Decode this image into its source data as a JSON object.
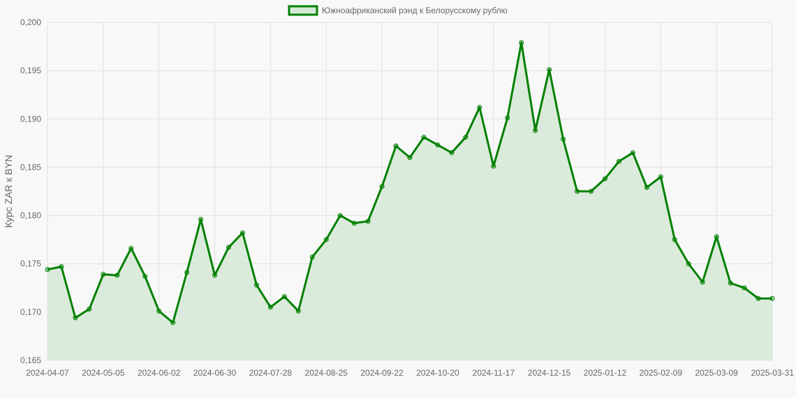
{
  "chart_data": {
    "type": "area",
    "ylabel": "Курс ZAR к BYN",
    "xlabel": "",
    "ylim": [
      0.165,
      0.2
    ],
    "y_ticks": [
      "0,165",
      "0,170",
      "0,175",
      "0,180",
      "0,185",
      "0,190",
      "0,195",
      "0,200"
    ],
    "x_ticks": [
      "2024-04-07",
      "2024-05-05",
      "2024-06-02",
      "2024-06-30",
      "2024-07-28",
      "2024-08-25",
      "2024-09-22",
      "2024-10-20",
      "2024-11-17",
      "2024-12-15",
      "2025-01-12",
      "2025-02-09",
      "2025-03-09",
      "2025-03-31"
    ],
    "legend_position": "top",
    "grid": true,
    "colors": {
      "line": "#008000",
      "fill": "#d6e9d6",
      "grid": "#e0e0e0",
      "background": "#f8f8f8"
    },
    "series": [
      {
        "name": "Южноафриканский рэнд к Белорусскому рублю",
        "values": [
          0.1744,
          0.1747,
          0.1694,
          0.1703,
          0.1739,
          0.1738,
          0.1766,
          0.1737,
          0.1701,
          0.1689,
          0.1741,
          0.1796,
          0.1738,
          0.1767,
          0.1782,
          0.1728,
          0.1705,
          0.1716,
          0.1701,
          0.1757,
          0.1775,
          0.18,
          0.1792,
          0.1794,
          0.183,
          0.1872,
          0.186,
          0.1881,
          0.1873,
          0.1865,
          0.1881,
          0.1912,
          0.1851,
          0.1901,
          0.1979,
          0.1888,
          0.1951,
          0.1879,
          0.1825,
          0.1825,
          0.1838,
          0.1856,
          0.1865,
          0.1829,
          0.184,
          0.1775,
          0.175,
          0.1731,
          0.1778,
          0.173,
          0.1725,
          0.1714,
          0.1714
        ]
      }
    ]
  }
}
